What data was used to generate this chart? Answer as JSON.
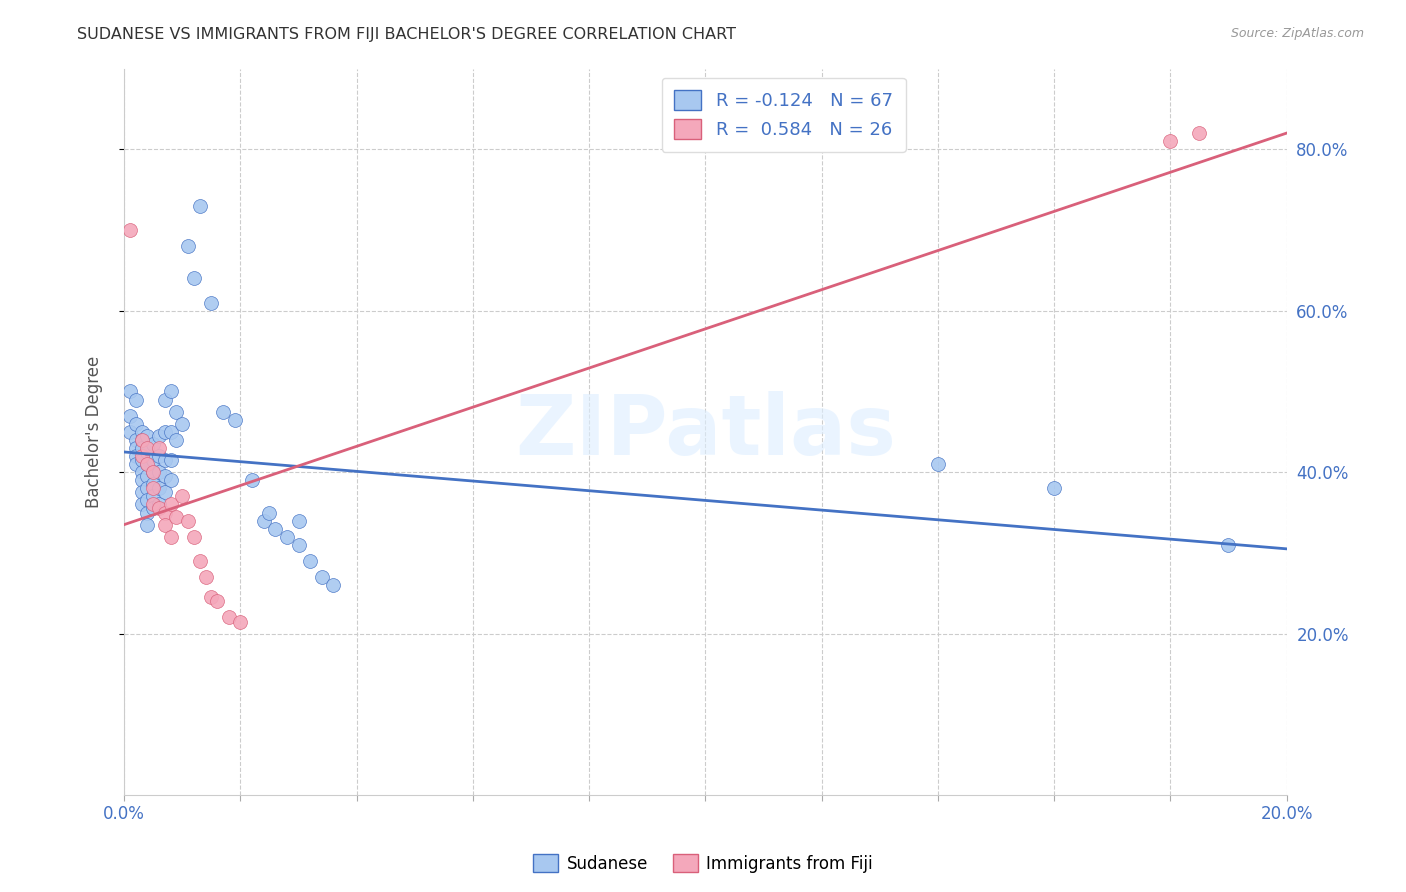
{
  "title": "SUDANESE VS IMMIGRANTS FROM FIJI BACHELOR'S DEGREE CORRELATION CHART",
  "source": "Source: ZipAtlas.com",
  "ylabel": "Bachelor's Degree",
  "watermark": "ZIPatlas",
  "x_min": 0.0,
  "x_max": 0.2,
  "y_min": 0.0,
  "y_max": 0.9,
  "blue_R": -0.124,
  "blue_N": 67,
  "pink_R": 0.584,
  "pink_N": 26,
  "blue_color": "#A8C8F0",
  "pink_color": "#F4A8BB",
  "blue_line_color": "#4472C4",
  "pink_line_color": "#D9607A",
  "blue_points": [
    [
      0.001,
      0.5
    ],
    [
      0.001,
      0.47
    ],
    [
      0.001,
      0.45
    ],
    [
      0.002,
      0.49
    ],
    [
      0.002,
      0.46
    ],
    [
      0.002,
      0.44
    ],
    [
      0.002,
      0.43
    ],
    [
      0.002,
      0.42
    ],
    [
      0.002,
      0.41
    ],
    [
      0.003,
      0.45
    ],
    [
      0.003,
      0.44
    ],
    [
      0.003,
      0.43
    ],
    [
      0.003,
      0.415
    ],
    [
      0.003,
      0.4
    ],
    [
      0.003,
      0.39
    ],
    [
      0.003,
      0.375
    ],
    [
      0.003,
      0.36
    ],
    [
      0.004,
      0.445
    ],
    [
      0.004,
      0.425
    ],
    [
      0.004,
      0.41
    ],
    [
      0.004,
      0.395
    ],
    [
      0.004,
      0.38
    ],
    [
      0.004,
      0.365
    ],
    [
      0.004,
      0.35
    ],
    [
      0.004,
      0.335
    ],
    [
      0.005,
      0.435
    ],
    [
      0.005,
      0.415
    ],
    [
      0.005,
      0.4
    ],
    [
      0.005,
      0.385
    ],
    [
      0.005,
      0.37
    ],
    [
      0.005,
      0.355
    ],
    [
      0.006,
      0.445
    ],
    [
      0.006,
      0.42
    ],
    [
      0.006,
      0.4
    ],
    [
      0.006,
      0.38
    ],
    [
      0.006,
      0.36
    ],
    [
      0.007,
      0.49
    ],
    [
      0.007,
      0.45
    ],
    [
      0.007,
      0.415
    ],
    [
      0.007,
      0.395
    ],
    [
      0.007,
      0.375
    ],
    [
      0.008,
      0.5
    ],
    [
      0.008,
      0.45
    ],
    [
      0.008,
      0.415
    ],
    [
      0.008,
      0.39
    ],
    [
      0.009,
      0.475
    ],
    [
      0.009,
      0.44
    ],
    [
      0.01,
      0.46
    ],
    [
      0.011,
      0.68
    ],
    [
      0.012,
      0.64
    ],
    [
      0.013,
      0.73
    ],
    [
      0.015,
      0.61
    ],
    [
      0.017,
      0.475
    ],
    [
      0.019,
      0.465
    ],
    [
      0.022,
      0.39
    ],
    [
      0.024,
      0.34
    ],
    [
      0.025,
      0.35
    ],
    [
      0.026,
      0.33
    ],
    [
      0.028,
      0.32
    ],
    [
      0.03,
      0.34
    ],
    [
      0.03,
      0.31
    ],
    [
      0.032,
      0.29
    ],
    [
      0.034,
      0.27
    ],
    [
      0.036,
      0.26
    ],
    [
      0.14,
      0.41
    ],
    [
      0.16,
      0.38
    ],
    [
      0.19,
      0.31
    ]
  ],
  "pink_points": [
    [
      0.001,
      0.7
    ],
    [
      0.003,
      0.44
    ],
    [
      0.003,
      0.42
    ],
    [
      0.004,
      0.43
    ],
    [
      0.004,
      0.41
    ],
    [
      0.005,
      0.4
    ],
    [
      0.005,
      0.38
    ],
    [
      0.005,
      0.36
    ],
    [
      0.006,
      0.43
    ],
    [
      0.006,
      0.355
    ],
    [
      0.007,
      0.35
    ],
    [
      0.007,
      0.335
    ],
    [
      0.008,
      0.36
    ],
    [
      0.008,
      0.32
    ],
    [
      0.009,
      0.345
    ],
    [
      0.01,
      0.37
    ],
    [
      0.011,
      0.34
    ],
    [
      0.012,
      0.32
    ],
    [
      0.013,
      0.29
    ],
    [
      0.014,
      0.27
    ],
    [
      0.015,
      0.245
    ],
    [
      0.016,
      0.24
    ],
    [
      0.018,
      0.22
    ],
    [
      0.02,
      0.215
    ],
    [
      0.18,
      0.81
    ],
    [
      0.185,
      0.82
    ]
  ],
  "blue_trendline": [
    [
      0.0,
      0.425
    ],
    [
      0.2,
      0.305
    ]
  ],
  "pink_trendline": [
    [
      0.0,
      0.335
    ],
    [
      0.2,
      0.82
    ]
  ],
  "legend_blue_label": "Sudanese",
  "legend_pink_label": "Immigrants from Fiji",
  "right_ytick_labels": [
    "80.0%",
    "60.0%",
    "40.0%",
    "20.0%"
  ],
  "right_ytick_values": [
    0.8,
    0.6,
    0.4,
    0.2
  ],
  "right_ytick_color": "#4472C4",
  "xtick_values": [
    0.0,
    0.02,
    0.04,
    0.06,
    0.08,
    0.1,
    0.12,
    0.14,
    0.16,
    0.18,
    0.2
  ],
  "xtick_labels": [
    "0.0%",
    "",
    "",
    "",
    "",
    "",
    "",
    "",
    "",
    "",
    "20.0%"
  ],
  "grid_color": "#CCCCCC",
  "title_color": "#333333",
  "source_color": "#999999",
  "ylabel_color": "#555555",
  "watermark_color": "#DDEEFF"
}
